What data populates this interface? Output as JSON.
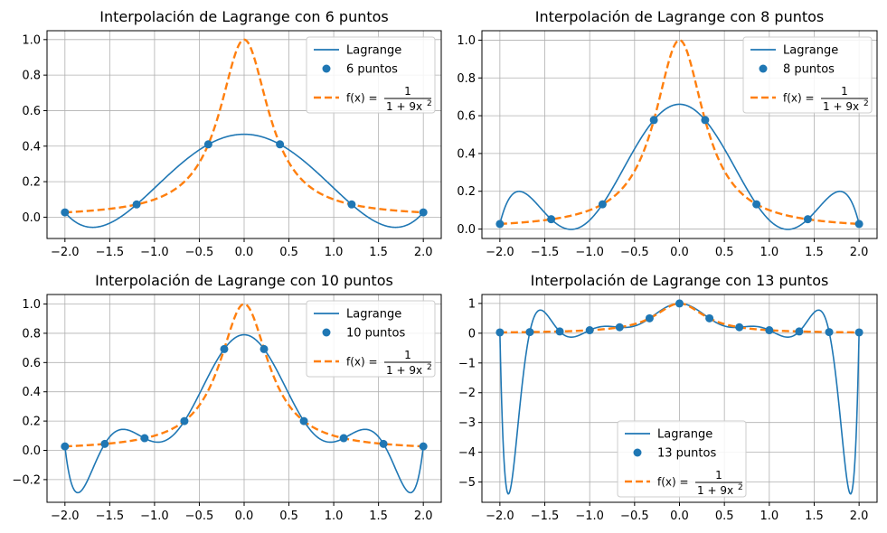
{
  "chart_data": [
    {
      "type": "line",
      "title": "Interpolación de Lagrange con 6 puntos",
      "xlim": [
        -2.2,
        2.2
      ],
      "ylim": [
        -0.12,
        1.05
      ],
      "xticks": [
        -2.0,
        -1.5,
        -1.0,
        -0.5,
        0.0,
        0.5,
        1.0,
        1.5,
        2.0
      ],
      "xtick_labels": [
        "−2.0",
        "−1.5",
        "−1.0",
        "−0.5",
        "0.0",
        "0.5",
        "1.0",
        "1.5",
        "2.0"
      ],
      "yticks": [
        0.0,
        0.2,
        0.4,
        0.6,
        0.8,
        1.0
      ],
      "ytick_labels": [
        "0.0",
        "0.2",
        "0.4",
        "0.6",
        "0.8",
        "1.0"
      ],
      "grid": true,
      "legend_position": "upper right",
      "series": [
        {
          "name": "Lagrange",
          "kind": "line",
          "color": "#1f77b4",
          "function": "lagrange_interpolant"
        },
        {
          "name": "6 puntos",
          "kind": "scatter",
          "color": "#1f77b4",
          "x": [
            -2.0,
            -1.2,
            -0.4,
            0.4,
            1.2,
            2.0
          ],
          "y": [
            0.027,
            0.072,
            0.41,
            0.41,
            0.072,
            0.027
          ]
        },
        {
          "name_prefix": "f(x) = ",
          "name_numerator": "1",
          "name_denominator": "1 + 9x",
          "name_exponent": "2",
          "kind": "line",
          "style": "dashed",
          "color": "#ff7f0e",
          "function": "1/(1+9x^2)"
        }
      ]
    },
    {
      "type": "line",
      "title": "Interpolación de Lagrange con 8 puntos",
      "xlim": [
        -2.2,
        2.2
      ],
      "ylim": [
        -0.05,
        1.05
      ],
      "xticks": [
        -2.0,
        -1.5,
        -1.0,
        -0.5,
        0.0,
        0.5,
        1.0,
        1.5,
        2.0
      ],
      "xtick_labels": [
        "−2.0",
        "−1.5",
        "−1.0",
        "−0.5",
        "0.0",
        "0.5",
        "1.0",
        "1.5",
        "2.0"
      ],
      "yticks": [
        0.0,
        0.2,
        0.4,
        0.6,
        0.8,
        1.0
      ],
      "ytick_labels": [
        "0.0",
        "0.2",
        "0.4",
        "0.6",
        "0.8",
        "1.0"
      ],
      "grid": true,
      "legend_position": "upper right",
      "series": [
        {
          "name": "Lagrange",
          "kind": "line",
          "color": "#1f77b4",
          "function": "lagrange_interpolant"
        },
        {
          "name": "8 puntos",
          "kind": "scatter",
          "color": "#1f77b4",
          "x": [
            -2.0,
            -1.4286,
            -0.8571,
            -0.2857,
            0.2857,
            0.8571,
            1.4286,
            2.0
          ],
          "y": [
            0.027,
            0.052,
            0.131,
            0.577,
            0.577,
            0.131,
            0.052,
            0.027
          ]
        },
        {
          "name_prefix": "f(x) = ",
          "name_numerator": "1",
          "name_denominator": "1 + 9x",
          "name_exponent": "2",
          "kind": "line",
          "style": "dashed",
          "color": "#ff7f0e",
          "function": "1/(1+9x^2)"
        }
      ]
    },
    {
      "type": "line",
      "title": "Interpolación de Lagrange con 10 puntos",
      "xlim": [
        -2.2,
        2.2
      ],
      "ylim": [
        -0.355,
        1.065
      ],
      "xticks": [
        -2.0,
        -1.5,
        -1.0,
        -0.5,
        0.0,
        0.5,
        1.0,
        1.5,
        2.0
      ],
      "xtick_labels": [
        "−2.0",
        "−1.5",
        "−1.0",
        "−0.5",
        "0.0",
        "0.5",
        "1.0",
        "1.5",
        "2.0"
      ],
      "yticks": [
        -0.2,
        0.0,
        0.2,
        0.4,
        0.6,
        0.8,
        1.0
      ],
      "ytick_labels": [
        "−0.2",
        "0.0",
        "0.2",
        "0.4",
        "0.6",
        "0.8",
        "1.0"
      ],
      "grid": true,
      "legend_position": "upper right",
      "series": [
        {
          "name": "Lagrange",
          "kind": "line",
          "color": "#1f77b4",
          "function": "lagrange_interpolant"
        },
        {
          "name": "10 puntos",
          "kind": "scatter",
          "color": "#1f77b4",
          "x": [
            -2.0,
            -1.5556,
            -1.1111,
            -0.6667,
            -0.2222,
            0.2222,
            0.6667,
            1.1111,
            1.5556,
            2.0
          ],
          "y": [
            0.027,
            0.044,
            0.083,
            0.2,
            0.692,
            0.692,
            0.2,
            0.083,
            0.044,
            0.027
          ]
        },
        {
          "name_prefix": "f(x) = ",
          "name_numerator": "1",
          "name_denominator": "1 + 9x",
          "name_exponent": "2",
          "kind": "line",
          "style": "dashed",
          "color": "#ff7f0e",
          "function": "1/(1+9x^2)"
        }
      ]
    },
    {
      "type": "line",
      "title": "Interpolación de Lagrange con 13 puntos",
      "xlim": [
        -2.2,
        2.2
      ],
      "ylim": [
        -5.68,
        1.3
      ],
      "xticks": [
        -2.0,
        -1.5,
        -1.0,
        -0.5,
        0.0,
        0.5,
        1.0,
        1.5,
        2.0
      ],
      "xtick_labels": [
        "−2.0",
        "−1.5",
        "−1.0",
        "−0.5",
        "0.0",
        "0.5",
        "1.0",
        "1.5",
        "2.0"
      ],
      "yticks": [
        -5,
        -4,
        -3,
        -2,
        -1,
        0,
        1
      ],
      "ytick_labels": [
        "−5",
        "−4",
        "−3",
        "−2",
        "−1",
        "0",
        "1"
      ],
      "grid": true,
      "legend_position": "lower center",
      "series": [
        {
          "name": "Lagrange",
          "kind": "line",
          "color": "#1f77b4",
          "function": "lagrange_interpolant"
        },
        {
          "name": "13 puntos",
          "kind": "scatter",
          "color": "#1f77b4",
          "x": [
            -2.0,
            -1.6667,
            -1.3333,
            -1.0,
            -0.6667,
            -0.3333,
            0.0,
            0.3333,
            0.6667,
            1.0,
            1.3333,
            1.6667,
            2.0
          ],
          "y": [
            0.027,
            0.038,
            0.059,
            0.1,
            0.2,
            0.5,
            1.0,
            0.5,
            0.2,
            0.1,
            0.059,
            0.038,
            0.027
          ]
        },
        {
          "name_prefix": "f(x) = ",
          "name_numerator": "1",
          "name_denominator": "1 + 9x",
          "name_exponent": "2",
          "kind": "line",
          "style": "dashed",
          "color": "#ff7f0e",
          "function": "1/(1+9x^2)"
        }
      ]
    }
  ]
}
